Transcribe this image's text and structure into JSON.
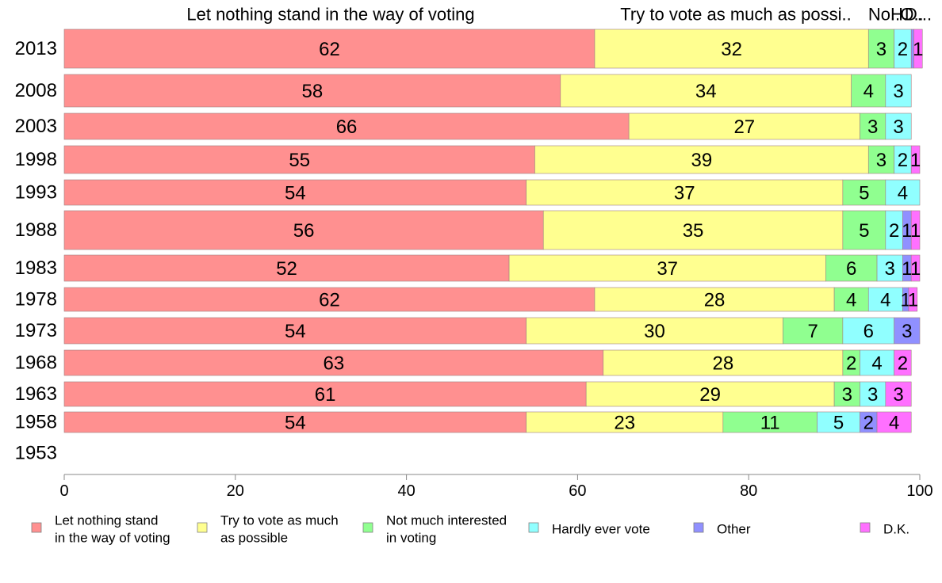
{
  "chart_data": {
    "type": "bar",
    "orientation": "horizontal",
    "stacked": true,
    "categories": [
      "2013",
      "2008",
      "2003",
      "1998",
      "1993",
      "1988",
      "1983",
      "1978",
      "1973",
      "1968",
      "1963",
      "1958",
      "1953"
    ],
    "series": [
      {
        "name": "Let nothing stand in the way of voting",
        "legend_lines": [
          "Let nothing stand",
          "in the way of voting"
        ],
        "color": "#ff9090",
        "values": [
          62,
          58,
          66,
          55,
          54,
          56,
          52,
          62,
          54,
          63,
          61,
          54,
          null
        ],
        "labels": [
          "62",
          "58",
          "66",
          "55",
          "54",
          "56",
          "52",
          "62",
          "54",
          "63",
          "61",
          "54",
          ""
        ]
      },
      {
        "name": "Try to vote as much as possible",
        "legend_lines": [
          "Try to vote as much",
          "as possible"
        ],
        "color": "#ffff90",
        "values": [
          32,
          34,
          27,
          39,
          37,
          35,
          37,
          28,
          30,
          28,
          29,
          23,
          null
        ],
        "labels": [
          "32",
          "34",
          "27",
          "39",
          "37",
          "35",
          "37",
          "28",
          "30",
          "28",
          "29",
          "23",
          ""
        ]
      },
      {
        "name": "Not much interested in voting",
        "legend_lines": [
          "Not much interested",
          "in voting"
        ],
        "color": "#90ff90",
        "values": [
          3,
          4,
          3,
          3,
          5,
          5,
          6,
          4,
          7,
          2,
          3,
          11,
          null
        ],
        "labels": [
          "3",
          "4",
          "3",
          "3",
          "5",
          "5",
          "6",
          "4",
          "7",
          "2",
          "3",
          "11",
          ""
        ]
      },
      {
        "name": "Hardly ever vote",
        "legend_lines": [
          "Hardly ever vote"
        ],
        "color": "#90ffff",
        "values": [
          2,
          3,
          3,
          2,
          4,
          2,
          3,
          4,
          6,
          4,
          3,
          5,
          null
        ],
        "labels": [
          "2",
          "3",
          "3",
          "2",
          "4",
          "2",
          "3",
          "4",
          "6",
          "4",
          "3",
          "5",
          ""
        ]
      },
      {
        "name": "Other",
        "legend_lines": [
          "Other"
        ],
        "color": "#9090ff",
        "values": [
          0.3,
          0,
          0,
          0,
          0,
          1,
          1,
          0.7,
          3,
          0,
          0,
          2,
          null
        ],
        "labels": [
          "",
          "",
          "",
          "",
          "",
          "1",
          "1",
          "1",
          "3",
          "",
          "",
          "2",
          ""
        ]
      },
      {
        "name": "D.K.",
        "legend_lines": [
          "D.K."
        ],
        "color": "#ff70ff",
        "values": [
          1,
          0,
          0,
          1,
          0,
          1,
          1,
          1,
          0,
          2,
          3,
          4,
          null
        ],
        "labels": [
          "1",
          "",
          "",
          "1",
          "",
          "1",
          "1",
          "1",
          "",
          "2",
          "3",
          "4",
          ""
        ]
      }
    ],
    "top_labels": [
      "Let nothing stand in the way of voting",
      "Try to vote as much as possi..",
      "No..",
      "H..",
      "O..",
      "D..."
    ],
    "xlim": [
      0,
      100
    ],
    "xticks": [
      "0",
      "20",
      "40",
      "60",
      "80",
      "100"
    ],
    "grid": false,
    "legend_position": "bottom"
  }
}
